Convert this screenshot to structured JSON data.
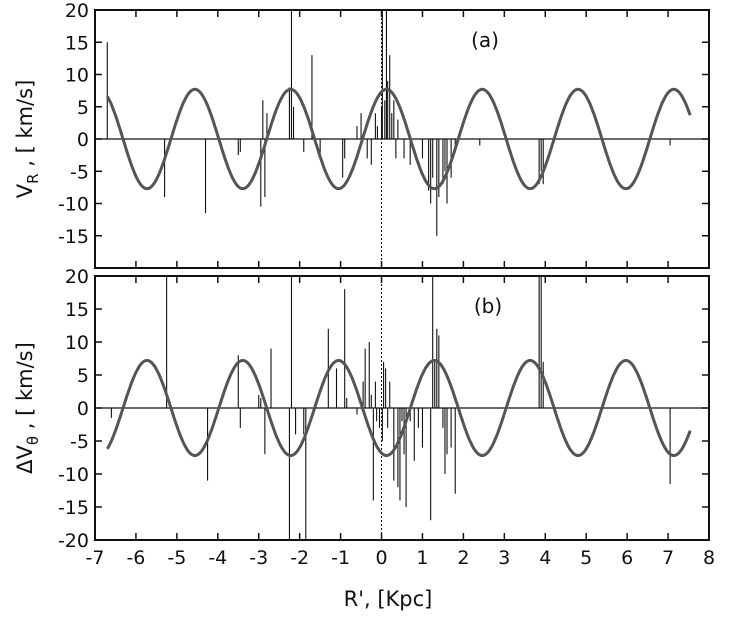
{
  "chart_data": [
    {
      "type": "line",
      "panel_label": "(a)",
      "ylabel_main": "V",
      "ylabel_sub": "R",
      "ylabel_unit": " , [ km/s]",
      "xlim": [
        -7,
        8
      ],
      "ylim": [
        -20,
        20
      ],
      "xticks": [
        -7,
        -6,
        -5,
        -4,
        -3,
        -2,
        -1,
        0,
        1,
        2,
        3,
        4,
        5,
        6,
        7,
        8
      ],
      "yticks": [
        -15,
        -10,
        -5,
        0,
        5,
        10,
        15,
        20
      ],
      "curve": {
        "amplitude": 7.7,
        "period": 2.34,
        "peak_at": 0.12,
        "x_range": [
          -6.7,
          7.55
        ]
      },
      "bars": [
        [
          -6.7,
          15
        ],
        [
          -5.3,
          -9
        ],
        [
          -4.3,
          -11.5
        ],
        [
          -3.5,
          -2.5
        ],
        [
          -3.45,
          -2.0
        ],
        [
          -2.95,
          -10.5
        ],
        [
          -2.9,
          6
        ],
        [
          -2.85,
          -9
        ],
        [
          -2.8,
          4
        ],
        [
          -2.25,
          8
        ],
        [
          -2.2,
          20
        ],
        [
          -2.15,
          5
        ],
        [
          -1.9,
          -2
        ],
        [
          -1.7,
          13
        ],
        [
          -1.5,
          -3
        ],
        [
          -0.95,
          -6
        ],
        [
          -0.9,
          -3
        ],
        [
          -0.6,
          2
        ],
        [
          -0.5,
          4
        ],
        [
          -0.35,
          -3
        ],
        [
          -0.25,
          -4
        ],
        [
          -0.15,
          4
        ],
        [
          -0.1,
          2
        ],
        [
          0.0,
          5
        ],
        [
          0.02,
          20
        ],
        [
          0.08,
          6
        ],
        [
          0.12,
          20
        ],
        [
          0.15,
          9
        ],
        [
          0.2,
          13
        ],
        [
          0.25,
          4
        ],
        [
          0.3,
          6
        ],
        [
          0.35,
          -3
        ],
        [
          0.4,
          3
        ],
        [
          0.55,
          -3
        ],
        [
          0.7,
          -4
        ],
        [
          1.0,
          -3
        ],
        [
          1.15,
          -8
        ],
        [
          1.2,
          -10
        ],
        [
          1.25,
          -6
        ],
        [
          1.35,
          -15
        ],
        [
          1.4,
          -9
        ],
        [
          1.5,
          -7
        ],
        [
          1.55,
          -5
        ],
        [
          1.6,
          -10
        ],
        [
          1.7,
          -6
        ],
        [
          1.8,
          -2
        ],
        [
          2.4,
          -1
        ],
        [
          3.85,
          -7
        ],
        [
          3.9,
          -5
        ],
        [
          3.95,
          -7
        ],
        [
          7.05,
          -1
        ]
      ]
    },
    {
      "type": "line",
      "panel_label": "(b)",
      "ylabel_main": "ΔV",
      "ylabel_sub": "θ",
      "ylabel_unit": " , [ km/s]",
      "xlim": [
        -7,
        8
      ],
      "ylim": [
        -20,
        20
      ],
      "xticks": [
        -7,
        -6,
        -5,
        -4,
        -3,
        -2,
        -1,
        0,
        1,
        2,
        3,
        4,
        5,
        6,
        7,
        8
      ],
      "yticks": [
        -20,
        -15,
        -10,
        -5,
        0,
        5,
        10,
        15,
        20
      ],
      "xlabel": "R', [Kpc]",
      "curve": {
        "amplitude": 7.2,
        "period": 2.34,
        "peak_at": -1.05,
        "x_range": [
          -6.7,
          7.55
        ]
      },
      "bars": [
        [
          -6.6,
          -1.5
        ],
        [
          -5.25,
          20
        ],
        [
          -4.25,
          -11
        ],
        [
          -3.5,
          8
        ],
        [
          -3.45,
          -3
        ],
        [
          -3.0,
          2
        ],
        [
          -2.95,
          1.5
        ],
        [
          -2.85,
          -7
        ],
        [
          -2.7,
          9
        ],
        [
          -2.25,
          -20
        ],
        [
          -2.2,
          20
        ],
        [
          -2.1,
          -4
        ],
        [
          -1.9,
          -4
        ],
        [
          -1.85,
          -20
        ],
        [
          -1.3,
          12
        ],
        [
          -1.1,
          6
        ],
        [
          -0.9,
          18
        ],
        [
          -0.85,
          1.5
        ],
        [
          -0.6,
          -1
        ],
        [
          -0.45,
          4
        ],
        [
          -0.4,
          9
        ],
        [
          -0.3,
          10
        ],
        [
          -0.25,
          2
        ],
        [
          -0.2,
          -14
        ],
        [
          -0.15,
          4
        ],
        [
          -0.12,
          -2
        ],
        [
          -0.05,
          -3
        ],
        [
          0.02,
          -5
        ],
        [
          0.05,
          7
        ],
        [
          0.1,
          6
        ],
        [
          0.15,
          -3
        ],
        [
          0.2,
          4
        ],
        [
          0.3,
          -11
        ],
        [
          0.4,
          -12
        ],
        [
          0.45,
          -14
        ],
        [
          0.5,
          -2
        ],
        [
          0.55,
          -7
        ],
        [
          0.6,
          -15
        ],
        [
          0.7,
          -2
        ],
        [
          0.8,
          -8
        ],
        [
          0.9,
          -3
        ],
        [
          1.0,
          -6
        ],
        [
          1.2,
          -17
        ],
        [
          1.25,
          20
        ],
        [
          1.3,
          7
        ],
        [
          1.35,
          12
        ],
        [
          1.4,
          11
        ],
        [
          1.5,
          -3
        ],
        [
          1.55,
          -10
        ],
        [
          1.6,
          -7
        ],
        [
          1.7,
          -6
        ],
        [
          1.8,
          -13
        ],
        [
          1.9,
          -1
        ],
        [
          3.85,
          20
        ],
        [
          3.9,
          20
        ],
        [
          3.95,
          7
        ],
        [
          7.05,
          -11.5
        ]
      ]
    }
  ]
}
